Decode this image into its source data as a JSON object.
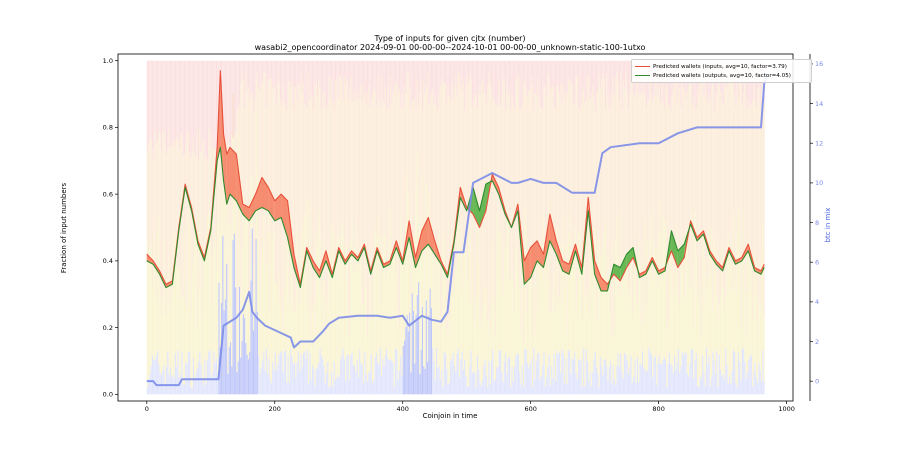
{
  "chart_data": {
    "type": "line",
    "title": "Type of inputs for given cjtx (number)",
    "subtitle": "wasabi2_opencoordinator 2024-09-01 00-00-00--2024-10-01 00-00-00_unknown-static-100-1utxo",
    "xlabel": "Coinjoin in time",
    "ylabel": "Fraction of input numbers",
    "y2label": "btc in mix",
    "xlim": [
      -45,
      1010
    ],
    "ylim": [
      -0.02,
      1.02
    ],
    "y2lim": [
      -1,
      16.5
    ],
    "x_ticks": [
      "0",
      "200",
      "400",
      "600",
      "800",
      "1000"
    ],
    "y_ticks": [
      "0.0",
      "0.2",
      "0.4",
      "0.6",
      "0.8",
      "1.0"
    ],
    "y2_ticks": [
      "0",
      "2",
      "4",
      "6",
      "8",
      "10",
      "12",
      "14",
      "16"
    ],
    "grid": false,
    "legend_position": "top-right",
    "colors": {
      "inputs": "#e8503a",
      "outputs": "#2e8b2e",
      "fill_inputs_higher": "#f47a5c",
      "fill_outputs_higher": "#4fae3d",
      "btc": "#7b8ce8",
      "bar_remix": "#f5c58a",
      "bar_fresh": "#f3a5a5",
      "bar_yellow": "#f6e9a6",
      "bar_blue": "#a9b4f5"
    },
    "series": [
      {
        "name": "Predicted wallets (inputs, avg=10, factor=3.79)",
        "x": [
          0,
          10,
          20,
          30,
          40,
          50,
          60,
          70,
          80,
          90,
          100,
          110,
          115,
          120,
          125,
          130,
          140,
          150,
          160,
          170,
          180,
          190,
          200,
          210,
          220,
          230,
          240,
          250,
          260,
          270,
          280,
          290,
          300,
          310,
          320,
          330,
          340,
          350,
          360,
          370,
          380,
          390,
          400,
          410,
          420,
          430,
          440,
          450,
          460,
          470,
          480,
          490,
          500,
          510,
          520,
          530,
          540,
          550,
          560,
          570,
          580,
          590,
          600,
          610,
          620,
          630,
          640,
          650,
          660,
          670,
          680,
          690,
          700,
          710,
          720,
          730,
          740,
          750,
          760,
          770,
          780,
          790,
          800,
          810,
          820,
          830,
          840,
          850,
          860,
          870,
          880,
          890,
          900,
          910,
          920,
          930,
          940,
          950,
          960,
          965
        ],
        "values": [
          0.42,
          0.4,
          0.37,
          0.33,
          0.34,
          0.5,
          0.63,
          0.56,
          0.46,
          0.41,
          0.5,
          0.74,
          0.97,
          0.78,
          0.72,
          0.74,
          0.72,
          0.57,
          0.56,
          0.6,
          0.65,
          0.62,
          0.58,
          0.6,
          0.58,
          0.42,
          0.33,
          0.44,
          0.4,
          0.37,
          0.43,
          0.36,
          0.44,
          0.4,
          0.43,
          0.41,
          0.45,
          0.37,
          0.44,
          0.39,
          0.4,
          0.46,
          0.4,
          0.52,
          0.41,
          0.49,
          0.53,
          0.46,
          0.4,
          0.36,
          0.46,
          0.62,
          0.56,
          0.54,
          0.5,
          0.55,
          0.66,
          0.62,
          0.55,
          0.5,
          0.57,
          0.4,
          0.44,
          0.46,
          0.42,
          0.54,
          0.46,
          0.4,
          0.39,
          0.45,
          0.38,
          0.59,
          0.4,
          0.35,
          0.33,
          0.36,
          0.34,
          0.38,
          0.41,
          0.36,
          0.37,
          0.41,
          0.37,
          0.38,
          0.43,
          0.38,
          0.41,
          0.52,
          0.47,
          0.49,
          0.43,
          0.4,
          0.38,
          0.44,
          0.4,
          0.41,
          0.45,
          0.38,
          0.37,
          0.39
        ]
      },
      {
        "name": "Predicted wallets (outputs, avg=10, factor=4.05)",
        "x": [
          0,
          10,
          20,
          30,
          40,
          50,
          60,
          70,
          80,
          90,
          100,
          110,
          115,
          120,
          125,
          130,
          140,
          150,
          160,
          170,
          180,
          190,
          200,
          210,
          220,
          230,
          240,
          250,
          260,
          270,
          280,
          290,
          300,
          310,
          320,
          330,
          340,
          350,
          360,
          370,
          380,
          390,
          400,
          410,
          420,
          430,
          440,
          450,
          460,
          470,
          480,
          490,
          500,
          510,
          520,
          530,
          540,
          550,
          560,
          570,
          580,
          590,
          600,
          610,
          620,
          630,
          640,
          650,
          660,
          670,
          680,
          690,
          700,
          710,
          720,
          730,
          740,
          750,
          760,
          770,
          780,
          790,
          800,
          810,
          820,
          830,
          840,
          850,
          860,
          870,
          880,
          890,
          900,
          910,
          920,
          930,
          940,
          950,
          960,
          965
        ],
        "values": [
          0.4,
          0.39,
          0.36,
          0.32,
          0.33,
          0.49,
          0.62,
          0.55,
          0.45,
          0.4,
          0.49,
          0.7,
          0.74,
          0.64,
          0.57,
          0.6,
          0.58,
          0.54,
          0.52,
          0.55,
          0.56,
          0.55,
          0.52,
          0.53,
          0.47,
          0.38,
          0.32,
          0.43,
          0.38,
          0.35,
          0.4,
          0.35,
          0.43,
          0.39,
          0.42,
          0.4,
          0.44,
          0.36,
          0.43,
          0.38,
          0.39,
          0.44,
          0.39,
          0.47,
          0.38,
          0.43,
          0.45,
          0.42,
          0.39,
          0.35,
          0.45,
          0.59,
          0.55,
          0.62,
          0.55,
          0.63,
          0.64,
          0.6,
          0.54,
          0.5,
          0.55,
          0.33,
          0.35,
          0.4,
          0.38,
          0.46,
          0.42,
          0.37,
          0.36,
          0.43,
          0.36,
          0.55,
          0.36,
          0.31,
          0.31,
          0.39,
          0.38,
          0.42,
          0.44,
          0.35,
          0.36,
          0.4,
          0.36,
          0.37,
          0.49,
          0.43,
          0.45,
          0.51,
          0.46,
          0.48,
          0.42,
          0.39,
          0.37,
          0.43,
          0.39,
          0.4,
          0.43,
          0.37,
          0.36,
          0.38
        ]
      },
      {
        "name": "btc in mix",
        "axis": "right",
        "x": [
          0,
          10,
          15,
          30,
          50,
          55,
          112,
          120,
          140,
          150,
          160,
          165,
          172,
          185,
          205,
          225,
          230,
          240,
          260,
          275,
          285,
          300,
          330,
          360,
          380,
          400,
          410,
          430,
          445,
          460,
          470,
          480,
          495,
          510,
          540,
          570,
          580,
          600,
          620,
          640,
          665,
          700,
          712,
          725,
          770,
          800,
          830,
          860,
          900,
          960,
          965,
          970
        ],
        "values": [
          0,
          0,
          -0.2,
          -0.2,
          -0.2,
          0.1,
          0.1,
          2.8,
          3.2,
          3.6,
          4.5,
          3.5,
          3.2,
          2.8,
          2.5,
          2.2,
          1.7,
          2.0,
          2.0,
          2.5,
          2.9,
          3.2,
          3.3,
          3.3,
          3.2,
          3.3,
          2.8,
          3.3,
          3.1,
          3.0,
          3.5,
          6.5,
          6.5,
          10.0,
          10.5,
          10.0,
          10.0,
          10.2,
          10.0,
          10.0,
          9.5,
          9.5,
          11.5,
          11.8,
          12.0,
          12.0,
          12.5,
          12.8,
          12.8,
          12.8,
          15.0,
          15.5
        ]
      }
    ]
  },
  "legend": {
    "inputs_label": "Predicted wallets (inputs, avg=10, factor=3.79)",
    "outputs_label": "Predicted wallets (outputs, avg=10, factor=4.05)"
  }
}
